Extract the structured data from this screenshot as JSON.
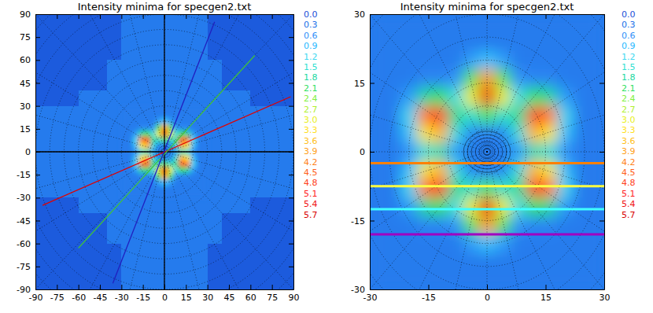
{
  "chart_data": [
    {
      "type": "heatmap",
      "title": "Intensity minima for specgen2.txt",
      "xlim": [
        -90,
        90
      ],
      "ylim": [
        -90,
        90
      ],
      "xticks": [
        -90,
        -75,
        -60,
        -45,
        -30,
        -15,
        0,
        15,
        30,
        45,
        60,
        75,
        90
      ],
      "yticks": [
        -90,
        -75,
        -60,
        -45,
        -30,
        -15,
        0,
        15,
        30,
        45,
        60,
        75,
        90
      ],
      "grid": true,
      "grid_radii": [
        10,
        20,
        30,
        40,
        50,
        60,
        70,
        80,
        90,
        100,
        110,
        120,
        130
      ],
      "grid_angles": [
        0,
        15,
        30,
        45,
        60,
        75,
        90,
        105,
        120,
        135,
        150,
        165,
        180,
        195,
        210,
        225,
        240,
        255,
        270,
        285,
        300,
        315,
        330,
        345
      ],
      "background_x": [
        -85,
        -75,
        -65,
        -55,
        -45,
        -35,
        -25,
        -15,
        -5,
        5,
        15,
        25,
        35,
        45,
        55,
        65,
        75,
        85
      ],
      "background_y": [
        85,
        75,
        65,
        55,
        45,
        35,
        25,
        15,
        5,
        -5,
        -15,
        -25,
        -35,
        -45,
        -55,
        -65,
        -75,
        -85
      ],
      "background_cells": [
        [
          0.1,
          0.1,
          0.1,
          0.1,
          0.1,
          0.1,
          0.4,
          0.4,
          0.4,
          0.4,
          0.4,
          0.4,
          0.1,
          0.1,
          0.1,
          0.1,
          0.1,
          0.1
        ],
        [
          0.1,
          0.1,
          0.1,
          0.1,
          0.1,
          0.1,
          0.4,
          0.4,
          0.4,
          0.4,
          0.4,
          0.4,
          0.1,
          0.1,
          0.1,
          0.1,
          0.1,
          0.1
        ],
        [
          0.1,
          0.1,
          0.1,
          0.1,
          0.1,
          0.1,
          0.4,
          0.4,
          0.4,
          0.4,
          0.4,
          0.4,
          0.1,
          0.1,
          0.1,
          0.1,
          0.1,
          0.1
        ],
        [
          0.1,
          0.1,
          0.1,
          0.1,
          0.1,
          0.4,
          0.4,
          0.4,
          0.4,
          0.4,
          0.4,
          0.4,
          0.4,
          0.1,
          0.1,
          0.1,
          0.1,
          0.1
        ],
        [
          0.1,
          0.1,
          0.1,
          0.1,
          0.1,
          0.4,
          0.4,
          0.4,
          0.4,
          0.4,
          0.4,
          0.4,
          0.4,
          0.1,
          0.1,
          0.1,
          0.1,
          0.1
        ],
        [
          0.1,
          0.1,
          0.1,
          0.4,
          0.4,
          0.4,
          0.4,
          0.4,
          0.4,
          0.4,
          0.4,
          0.4,
          0.4,
          0.4,
          0.4,
          0.1,
          0.1,
          0.1
        ],
        [
          0.4,
          0.4,
          0.4,
          0.4,
          0.4,
          0.4,
          0.4,
          0.4,
          0.4,
          0.4,
          0.4,
          0.4,
          0.4,
          0.4,
          0.4,
          0.4,
          0.4,
          0.4
        ],
        [
          0.4,
          0.4,
          0.4,
          0.4,
          0.4,
          0.4,
          0.4,
          0.4,
          0.4,
          0.4,
          0.4,
          0.4,
          0.4,
          0.4,
          0.4,
          0.4,
          0.4,
          0.4
        ],
        [
          0.4,
          0.4,
          0.4,
          0.4,
          0.4,
          0.4,
          0.4,
          0.4,
          0.4,
          0.4,
          0.4,
          0.4,
          0.4,
          0.4,
          0.4,
          0.4,
          0.4,
          0.4
        ],
        [
          0.4,
          0.4,
          0.4,
          0.4,
          0.4,
          0.4,
          0.4,
          0.4,
          0.4,
          0.4,
          0.4,
          0.4,
          0.4,
          0.4,
          0.4,
          0.4,
          0.4,
          0.4
        ],
        [
          0.4,
          0.4,
          0.4,
          0.4,
          0.4,
          0.4,
          0.4,
          0.4,
          0.4,
          0.4,
          0.4,
          0.4,
          0.4,
          0.4,
          0.4,
          0.4,
          0.4,
          0.4
        ],
        [
          0.4,
          0.4,
          0.4,
          0.4,
          0.4,
          0.4,
          0.4,
          0.4,
          0.4,
          0.4,
          0.4,
          0.4,
          0.4,
          0.4,
          0.4,
          0.4,
          0.4,
          0.4
        ],
        [
          0.1,
          0.1,
          0.1,
          0.4,
          0.4,
          0.4,
          0.4,
          0.4,
          0.4,
          0.4,
          0.4,
          0.4,
          0.4,
          0.4,
          0.4,
          0.1,
          0.1,
          0.1
        ],
        [
          0.1,
          0.1,
          0.1,
          0.1,
          0.1,
          0.4,
          0.4,
          0.4,
          0.4,
          0.4,
          0.4,
          0.4,
          0.4,
          0.1,
          0.1,
          0.1,
          0.1,
          0.1
        ],
        [
          0.1,
          0.1,
          0.1,
          0.1,
          0.1,
          0.4,
          0.4,
          0.4,
          0.4,
          0.4,
          0.4,
          0.4,
          0.4,
          0.1,
          0.1,
          0.1,
          0.1,
          0.1
        ],
        [
          0.1,
          0.1,
          0.1,
          0.1,
          0.1,
          0.1,
          0.4,
          0.4,
          0.4,
          0.4,
          0.4,
          0.4,
          0.1,
          0.1,
          0.1,
          0.1,
          0.1,
          0.1
        ],
        [
          0.1,
          0.1,
          0.1,
          0.1,
          0.1,
          0.1,
          0.4,
          0.4,
          0.4,
          0.4,
          0.4,
          0.4,
          0.1,
          0.1,
          0.1,
          0.1,
          0.1,
          0.1
        ],
        [
          0.1,
          0.1,
          0.1,
          0.1,
          0.1,
          0.1,
          0.4,
          0.4,
          0.4,
          0.4,
          0.4,
          0.4,
          0.1,
          0.1,
          0.1,
          0.1,
          0.1,
          0.1
        ]
      ],
      "cell_x": [
        -28,
        -24,
        -20,
        -16,
        -12,
        -8,
        -4,
        0,
        4,
        8,
        12,
        16,
        20,
        24,
        28
      ],
      "cell_y": [
        28,
        24,
        20,
        16,
        12,
        8,
        4,
        0,
        -4,
        -8,
        -12,
        -16,
        -20,
        -24,
        -28
      ],
      "cells": [
        [
          0.4,
          0.4,
          0.4,
          0.4,
          0.4,
          0.4,
          0.4,
          0.4,
          0.4,
          0.4,
          0.4,
          0.4,
          0.4,
          0.4,
          0.4
        ],
        [
          0.4,
          0.4,
          0.4,
          0.4,
          0.4,
          0.4,
          0.4,
          0.4,
          0.4,
          0.4,
          0.4,
          0.4,
          0.4,
          0.4,
          0.4
        ],
        [
          0.4,
          0.4,
          0.4,
          0.4,
          0.4,
          0.4,
          0.7,
          1.0,
          0.7,
          0.4,
          0.4,
          0.4,
          0.4,
          0.4,
          0.4
        ],
        [
          0.4,
          0.4,
          0.4,
          0.5,
          0.5,
          0.6,
          2.2,
          4.0,
          2.2,
          0.6,
          0.5,
          0.5,
          0.4,
          0.4,
          0.4
        ],
        [
          0.4,
          0.4,
          0.7,
          1.8,
          2.1,
          1.3,
          3.0,
          5.5,
          3.0,
          1.3,
          2.1,
          1.8,
          0.7,
          0.4,
          0.4
        ],
        [
          0.4,
          0.4,
          1.2,
          4.3,
          5.0,
          1.9,
          1.5,
          2.2,
          1.5,
          1.9,
          5.0,
          4.3,
          1.2,
          0.4,
          0.4
        ],
        [
          0.4,
          0.4,
          1.0,
          3.2,
          3.7,
          1.4,
          0.5,
          0.5,
          0.5,
          1.4,
          3.7,
          3.2,
          1.0,
          0.4,
          0.4
        ],
        [
          0.4,
          0.4,
          0.6,
          1.4,
          1.7,
          0.7,
          0.4,
          0.4,
          0.4,
          0.7,
          1.7,
          1.4,
          0.6,
          0.4,
          0.4
        ],
        [
          0.4,
          0.4,
          1.0,
          3.2,
          3.7,
          1.4,
          0.5,
          0.5,
          0.5,
          1.4,
          3.7,
          3.2,
          1.0,
          0.4,
          0.4
        ],
        [
          0.4,
          0.4,
          1.2,
          4.3,
          5.0,
          1.9,
          1.5,
          2.2,
          1.5,
          1.9,
          5.0,
          4.3,
          1.2,
          0.4,
          0.4
        ],
        [
          0.4,
          0.4,
          0.7,
          1.8,
          2.1,
          1.3,
          3.0,
          5.5,
          3.0,
          1.3,
          2.1,
          1.8,
          0.7,
          0.4,
          0.4
        ],
        [
          0.4,
          0.4,
          0.4,
          0.5,
          0.5,
          0.6,
          2.2,
          4.0,
          2.2,
          0.6,
          0.5,
          0.5,
          0.4,
          0.4,
          0.4
        ],
        [
          0.4,
          0.4,
          0.4,
          0.4,
          0.4,
          0.4,
          0.7,
          1.0,
          0.7,
          0.4,
          0.4,
          0.4,
          0.4,
          0.4,
          0.4
        ],
        [
          0.4,
          0.4,
          0.4,
          0.4,
          0.4,
          0.4,
          0.4,
          0.4,
          0.4,
          0.4,
          0.4,
          0.4,
          0.4,
          0.4,
          0.4
        ],
        [
          0.4,
          0.4,
          0.4,
          0.4,
          0.4,
          0.4,
          0.4,
          0.4,
          0.4,
          0.4,
          0.4,
          0.4,
          0.4,
          0.4,
          0.4
        ]
      ],
      "lines": [
        {
          "x": [
            -90,
            90
          ],
          "y": [
            0,
            0
          ],
          "color": "#000000"
        },
        {
          "x": [
            0,
            0
          ],
          "y": [
            -90,
            90
          ],
          "color": "#000000"
        },
        {
          "x": [
            -85,
            88
          ],
          "y": [
            -35,
            36
          ],
          "color": "#e00000"
        },
        {
          "x": [
            -60,
            63
          ],
          "y": [
            -63,
            63
          ],
          "color": "#40c040"
        },
        {
          "x": [
            -36,
            35
          ],
          "y": [
            -86,
            85
          ],
          "color": "#2020c0"
        }
      ],
      "colorbar": {
        "ticks": [
          {
            "value": 0,
            "label": "0.0"
          },
          0.3,
          0.6,
          0.9,
          1.2,
          1.5,
          1.8,
          2.1,
          2.4,
          2.7,
          {
            "value": 3,
            "label": "3.0"
          },
          3.3,
          3.6,
          3.9,
          4.2,
          4.5,
          4.8,
          5.1,
          5.4,
          5.7
        ],
        "colors": [
          "#1a50d8",
          "#2070e8",
          "#3090f8",
          "#28b8ff",
          "#40d8f0",
          "#30e0d0",
          "#20d8a0",
          "#30e060",
          "#80f040",
          "#b0f030",
          "#e8f020",
          "#ffe020",
          "#ffc020",
          "#ffa020",
          "#ff8020",
          "#ff6020",
          "#ff4020",
          "#ff2020",
          "#f01010",
          "#d80000"
        ]
      }
    },
    {
      "type": "heatmap",
      "title": "Intensity minima for specgen2.txt",
      "xlim": [
        -30,
        30
      ],
      "ylim": [
        -30,
        30
      ],
      "xticks": [
        -30,
        -15,
        0,
        15,
        30
      ],
      "yticks": [
        -30,
        -15,
        0,
        15,
        30
      ],
      "grid": true,
      "grid_radii": [
        5,
        10,
        15,
        20,
        25,
        30,
        35,
        40,
        45
      ],
      "grid_angles": [
        0,
        15,
        30,
        45,
        60,
        75,
        90,
        105,
        120,
        135,
        150,
        165,
        180,
        195,
        210,
        225,
        240,
        255,
        270,
        285,
        300,
        315,
        330,
        345
      ],
      "contour_radii": [
        1,
        2,
        3,
        4,
        5,
        6
      ],
      "cell_x": [
        -28,
        -24,
        -20,
        -16,
        -12,
        -8,
        -4,
        0,
        4,
        8,
        12,
        16,
        20,
        24,
        28
      ],
      "cell_y": [
        28,
        24,
        20,
        16,
        12,
        8,
        4,
        0,
        -4,
        -8,
        -12,
        -16,
        -20,
        -24,
        -28
      ],
      "cells": [
        [
          0.4,
          0.4,
          0.4,
          0.4,
          0.4,
          0.4,
          0.4,
          0.4,
          0.4,
          0.4,
          0.4,
          0.4,
          0.4,
          0.4,
          0.4
        ],
        [
          0.4,
          0.4,
          0.4,
          0.4,
          0.4,
          0.4,
          0.4,
          0.4,
          0.4,
          0.4,
          0.4,
          0.4,
          0.4,
          0.4,
          0.4
        ],
        [
          0.4,
          0.4,
          0.4,
          0.4,
          0.4,
          0.4,
          0.7,
          1.0,
          0.7,
          0.4,
          0.4,
          0.4,
          0.4,
          0.4,
          0.4
        ],
        [
          0.4,
          0.4,
          0.4,
          0.5,
          0.5,
          0.6,
          2.2,
          4.0,
          2.2,
          0.6,
          0.5,
          0.5,
          0.4,
          0.4,
          0.4
        ],
        [
          0.4,
          0.4,
          0.7,
          1.8,
          2.1,
          1.3,
          3.0,
          5.5,
          3.0,
          1.3,
          2.1,
          1.8,
          0.7,
          0.4,
          0.4
        ],
        [
          0.4,
          0.4,
          1.2,
          4.3,
          5.0,
          1.9,
          1.5,
          2.2,
          1.5,
          1.9,
          5.0,
          4.3,
          1.2,
          0.4,
          0.4
        ],
        [
          0.4,
          0.4,
          1.0,
          3.2,
          3.7,
          1.4,
          0.5,
          0.5,
          0.5,
          1.4,
          3.7,
          3.2,
          1.0,
          0.4,
          0.4
        ],
        [
          0.4,
          0.4,
          0.6,
          1.4,
          1.7,
          0.7,
          0.4,
          0.4,
          0.4,
          0.7,
          1.7,
          1.4,
          0.6,
          0.4,
          0.4
        ],
        [
          0.4,
          0.4,
          1.0,
          3.2,
          3.7,
          1.4,
          0.5,
          0.5,
          0.5,
          1.4,
          3.7,
          3.2,
          1.0,
          0.4,
          0.4
        ],
        [
          0.4,
          0.4,
          1.2,
          4.3,
          5.0,
          1.9,
          1.5,
          2.2,
          1.5,
          1.9,
          5.0,
          4.3,
          1.2,
          0.4,
          0.4
        ],
        [
          0.4,
          0.4,
          0.7,
          1.8,
          2.1,
          1.3,
          3.0,
          5.5,
          3.0,
          1.3,
          2.1,
          1.8,
          0.7,
          0.4,
          0.4
        ],
        [
          0.4,
          0.4,
          0.4,
          0.5,
          0.5,
          0.6,
          2.2,
          4.0,
          2.2,
          0.6,
          0.5,
          0.5,
          0.4,
          0.4,
          0.4
        ],
        [
          0.4,
          0.4,
          0.4,
          0.4,
          0.4,
          0.4,
          0.7,
          1.0,
          0.7,
          0.4,
          0.4,
          0.4,
          0.4,
          0.4,
          0.4
        ],
        [
          0.4,
          0.4,
          0.4,
          0.4,
          0.4,
          0.4,
          0.4,
          0.4,
          0.4,
          0.4,
          0.4,
          0.4,
          0.4,
          0.4,
          0.4
        ],
        [
          0.4,
          0.4,
          0.4,
          0.4,
          0.4,
          0.4,
          0.4,
          0.4,
          0.4,
          0.4,
          0.4,
          0.4,
          0.4,
          0.4,
          0.4
        ]
      ],
      "lines": [
        {
          "x": [
            -30,
            30
          ],
          "y": [
            -2.5,
            -2.5
          ],
          "color": "#ff8000"
        },
        {
          "x": [
            -30,
            30
          ],
          "y": [
            -7.5,
            -7.5
          ],
          "color": "#ffff40"
        },
        {
          "x": [
            -30,
            30
          ],
          "y": [
            -12.5,
            -12.5
          ],
          "color": "#40ffff"
        },
        {
          "x": [
            -30,
            30
          ],
          "y": [
            -18,
            -18
          ],
          "color": "#a000c0"
        }
      ],
      "colorbar": {
        "ticks": [
          {
            "value": 0,
            "label": "0.0"
          },
          0.3,
          0.6,
          0.9,
          1.2,
          1.5,
          1.8,
          2.1,
          2.4,
          2.7,
          {
            "value": 3,
            "label": "3.0"
          },
          3.3,
          3.6,
          3.9,
          4.2,
          4.5,
          4.8,
          5.1,
          5.4,
          5.7
        ],
        "colors": [
          "#1a50d8",
          "#2070e8",
          "#3090f8",
          "#28b8ff",
          "#40d8f0",
          "#30e0d0",
          "#20d8a0",
          "#30e060",
          "#80f040",
          "#b0f030",
          "#e8f020",
          "#ffe020",
          "#ffc020",
          "#ffa020",
          "#ff8020",
          "#ff6020",
          "#ff4020",
          "#ff2020",
          "#f01010",
          "#d80000"
        ]
      }
    }
  ]
}
